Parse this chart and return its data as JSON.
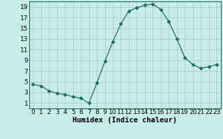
{
  "x": [
    0,
    1,
    2,
    3,
    4,
    5,
    6,
    7,
    8,
    9,
    10,
    11,
    12,
    13,
    14,
    15,
    16,
    17,
    18,
    19,
    20,
    21,
    22,
    23
  ],
  "y": [
    4.5,
    4.2,
    3.3,
    2.8,
    2.6,
    2.2,
    1.9,
    1.0,
    4.8,
    8.8,
    12.5,
    15.8,
    18.2,
    18.8,
    19.3,
    19.5,
    18.5,
    16.2,
    13.0,
    9.5,
    8.2,
    7.5,
    7.8,
    8.2
  ],
  "line_color": "#1a6b5a",
  "marker": "D",
  "marker_size": 2.5,
  "bg_color": "#c8ece8",
  "grid_color": "#aaccc8",
  "xlabel": "Humidex (Indice chaleur)",
  "xlim": [
    -0.5,
    23.5
  ],
  "ylim": [
    0,
    20
  ],
  "yticks": [
    1,
    3,
    5,
    7,
    9,
    11,
    13,
    15,
    17,
    19
  ],
  "xticks": [
    0,
    1,
    2,
    3,
    4,
    5,
    6,
    7,
    8,
    9,
    10,
    11,
    12,
    13,
    14,
    15,
    16,
    17,
    18,
    19,
    20,
    21,
    22,
    23
  ],
  "xlabel_fontsize": 7.5,
  "tick_fontsize": 6.5,
  "fig_width": 3.2,
  "fig_height": 2.0,
  "dpi": 100
}
